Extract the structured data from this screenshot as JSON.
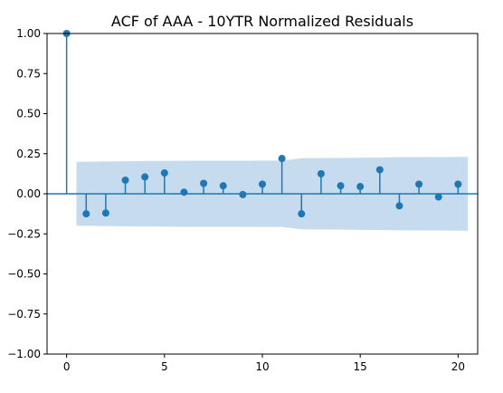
{
  "chart_data": {
    "type": "stem",
    "title": "ACF of AAA - 10YTR Normalized Residuals",
    "xlabel": "",
    "ylabel": "",
    "xlim": [
      -1,
      21
    ],
    "ylim": [
      -1.0,
      1.0
    ],
    "x_ticks": [
      0,
      5,
      10,
      15,
      20
    ],
    "y_ticks": [
      1.0,
      0.75,
      0.5,
      0.25,
      0.0,
      -0.25,
      -0.5,
      -0.75,
      -1.0
    ],
    "x_tick_labels": [
      "0",
      "5",
      "10",
      "15",
      "20"
    ],
    "y_tick_labels": [
      "1.00",
      "0.75",
      "0.50",
      "0.25",
      "0.00",
      "−0.25",
      "−0.50",
      "−0.75",
      "−1.00"
    ],
    "grid": false,
    "colors": {
      "stem": "#1f77b4",
      "confidence_band": "#c6dcee",
      "zero_line": "#1f77b4"
    },
    "lags": [
      0,
      1,
      2,
      3,
      4,
      5,
      6,
      7,
      8,
      9,
      10,
      11,
      12,
      13,
      14,
      15,
      16,
      17,
      18,
      19,
      20
    ],
    "acf": [
      1.0,
      -0.125,
      -0.12,
      0.085,
      0.105,
      0.13,
      0.01,
      0.065,
      0.05,
      -0.005,
      0.06,
      0.22,
      -0.125,
      0.125,
      0.05,
      0.045,
      0.15,
      -0.075,
      0.06,
      -0.02,
      0.06
    ],
    "confidence_band": {
      "lags": [
        0.5,
        1,
        2,
        3,
        4,
        5,
        6,
        7,
        8,
        9,
        10,
        11,
        12,
        13,
        14,
        15,
        16,
        17,
        18,
        19,
        20,
        20.5
      ],
      "upper": [
        0.2,
        0.2,
        0.202,
        0.203,
        0.204,
        0.205,
        0.206,
        0.206,
        0.206,
        0.206,
        0.207,
        0.207,
        0.222,
        0.223,
        0.224,
        0.225,
        0.226,
        0.228,
        0.229,
        0.229,
        0.23,
        0.23
      ],
      "lower": [
        -0.2,
        -0.2,
        -0.202,
        -0.203,
        -0.204,
        -0.205,
        -0.206,
        -0.206,
        -0.206,
        -0.206,
        -0.207,
        -0.207,
        -0.222,
        -0.223,
        -0.224,
        -0.225,
        -0.226,
        -0.228,
        -0.229,
        -0.229,
        -0.23,
        -0.23
      ]
    }
  }
}
